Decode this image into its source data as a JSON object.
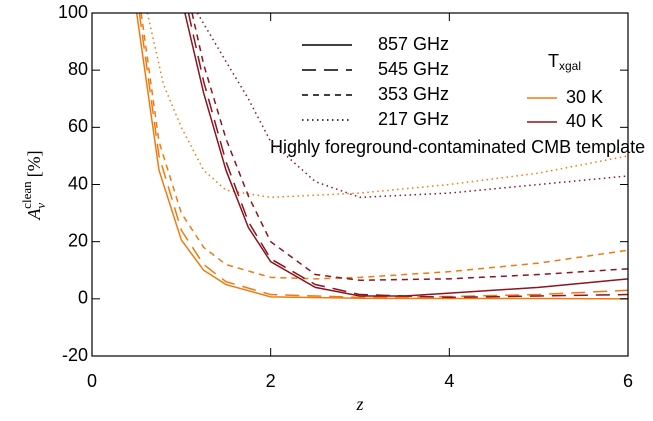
{
  "chart_data": {
    "type": "line",
    "xlabel": "z",
    "ylabel": {
      "main": "A",
      "sub": "ν",
      "sup": "clean",
      "unit": "[%]"
    },
    "annotation": "Highly foreground-contaminated CMB template",
    "xlim": [
      0,
      6
    ],
    "xticks": [
      0,
      2,
      4,
      6
    ],
    "ylim": [
      -20,
      100
    ],
    "yticks": [
      -20,
      0,
      20,
      40,
      60,
      80,
      100
    ],
    "line_styles": [
      {
        "label": "857 GHz",
        "dash": "solid"
      },
      {
        "label": "545 GHz",
        "dash": "long"
      },
      {
        "label": "353 GHz",
        "dash": "short"
      },
      {
        "label": "217 GHz",
        "dash": "dotted"
      }
    ],
    "temperature_title": {
      "main": "T",
      "sub": "xgal"
    },
    "temperatures": [
      {
        "label": "30 K",
        "color": "#f07a10"
      },
      {
        "label": "40 K",
        "color": "#8b1520"
      }
    ],
    "series": [
      {
        "color": "#f07a10",
        "dash": "solid",
        "x": [
          0.5,
          0.75,
          1,
          1.25,
          1.5,
          2,
          3,
          4,
          5,
          6
        ],
        "values": [
          100,
          45,
          20.6,
          10,
          5,
          0.7,
          0.2,
          0.1,
          0.1,
          0
        ]
      },
      {
        "color": "#f07a10",
        "dash": "long",
        "x": [
          0.53,
          0.75,
          1,
          1.25,
          1.5,
          2,
          3,
          4,
          5,
          6
        ],
        "values": [
          100,
          50,
          24,
          12,
          6,
          1.5,
          0.5,
          0.8,
          1.5,
          3
        ]
      },
      {
        "color": "#f07a10",
        "dash": "short",
        "x": [
          0.55,
          0.75,
          1,
          1.25,
          1.5,
          2,
          2.5,
          3,
          4,
          5,
          6
        ],
        "values": [
          100,
          55,
          30,
          18,
          12,
          7.5,
          7,
          7.5,
          9.5,
          12.5,
          17
        ]
      },
      {
        "color": "#f07a10",
        "dash": "dotted",
        "x": [
          0.62,
          0.8,
          1,
          1.25,
          1.5,
          2,
          3,
          4,
          5,
          6
        ],
        "values": [
          100,
          75,
          60,
          45,
          38,
          35.5,
          37,
          40,
          44,
          50
        ]
      },
      {
        "color": "#8b1520",
        "dash": "solid",
        "x": [
          1.04,
          1.25,
          1.5,
          1.75,
          2,
          2.5,
          3,
          3.5,
          4,
          5,
          6
        ],
        "values": [
          100,
          72,
          45,
          25,
          13,
          4,
          1,
          1,
          2,
          4,
          7
        ]
      },
      {
        "color": "#8b1520",
        "dash": "long",
        "x": [
          1.08,
          1.25,
          1.5,
          1.75,
          2,
          2.5,
          3,
          4,
          5,
          6
        ],
        "values": [
          100,
          76,
          48,
          27,
          14,
          5,
          1.5,
          0.5,
          1,
          1.5
        ]
      },
      {
        "color": "#8b1520",
        "dash": "short",
        "x": [
          1.12,
          1.25,
          1.5,
          1.75,
          2,
          2.5,
          3,
          4,
          5,
          6
        ],
        "values": [
          100,
          82,
          56,
          36,
          20,
          8.5,
          6.5,
          7,
          8.5,
          10.5
        ]
      },
      {
        "color": "#8b1520",
        "dash": "dotted",
        "x": [
          1.18,
          1.5,
          1.75,
          2,
          2.5,
          3,
          4,
          5,
          6
        ],
        "values": [
          100,
          83,
          70,
          55,
          41,
          35.5,
          37,
          40,
          43
        ]
      }
    ]
  }
}
